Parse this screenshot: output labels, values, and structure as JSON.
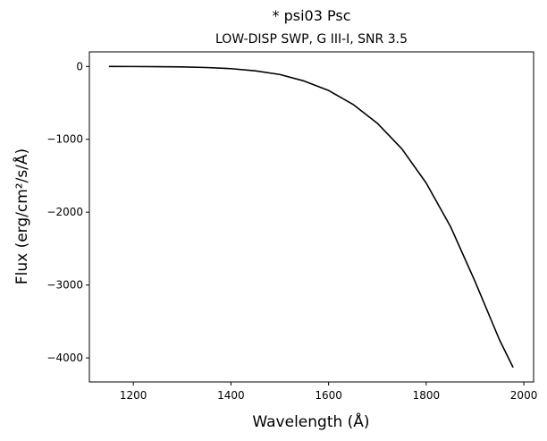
{
  "chart_data": {
    "type": "line",
    "title": "* psi03 Psc",
    "subtitle": "LOW-DISP SWP, G III-I, SNR 3.5",
    "xlabel": "Wavelength (Å)",
    "ylabel": "Flux (erg/cm²/s/Å)",
    "xlim": [
      1110,
      2020
    ],
    "ylim": [
      -4330,
      200
    ],
    "xticks": [
      1200,
      1400,
      1600,
      1800,
      2000
    ],
    "yticks": [
      0,
      -1000,
      -2000,
      -3000,
      -4000
    ],
    "grid": false,
    "series": [
      {
        "color": "#000000",
        "x": [
          1150,
          1200,
          1250,
          1300,
          1350,
          1400,
          1450,
          1500,
          1550,
          1600,
          1650,
          1700,
          1750,
          1800,
          1850,
          1900,
          1950,
          1978
        ],
        "y": [
          0,
          -1,
          -3,
          -7,
          -15,
          -30,
          -60,
          -110,
          -200,
          -330,
          -520,
          -780,
          -1130,
          -1600,
          -2200,
          -2950,
          -3750,
          -4130
        ]
      }
    ]
  }
}
